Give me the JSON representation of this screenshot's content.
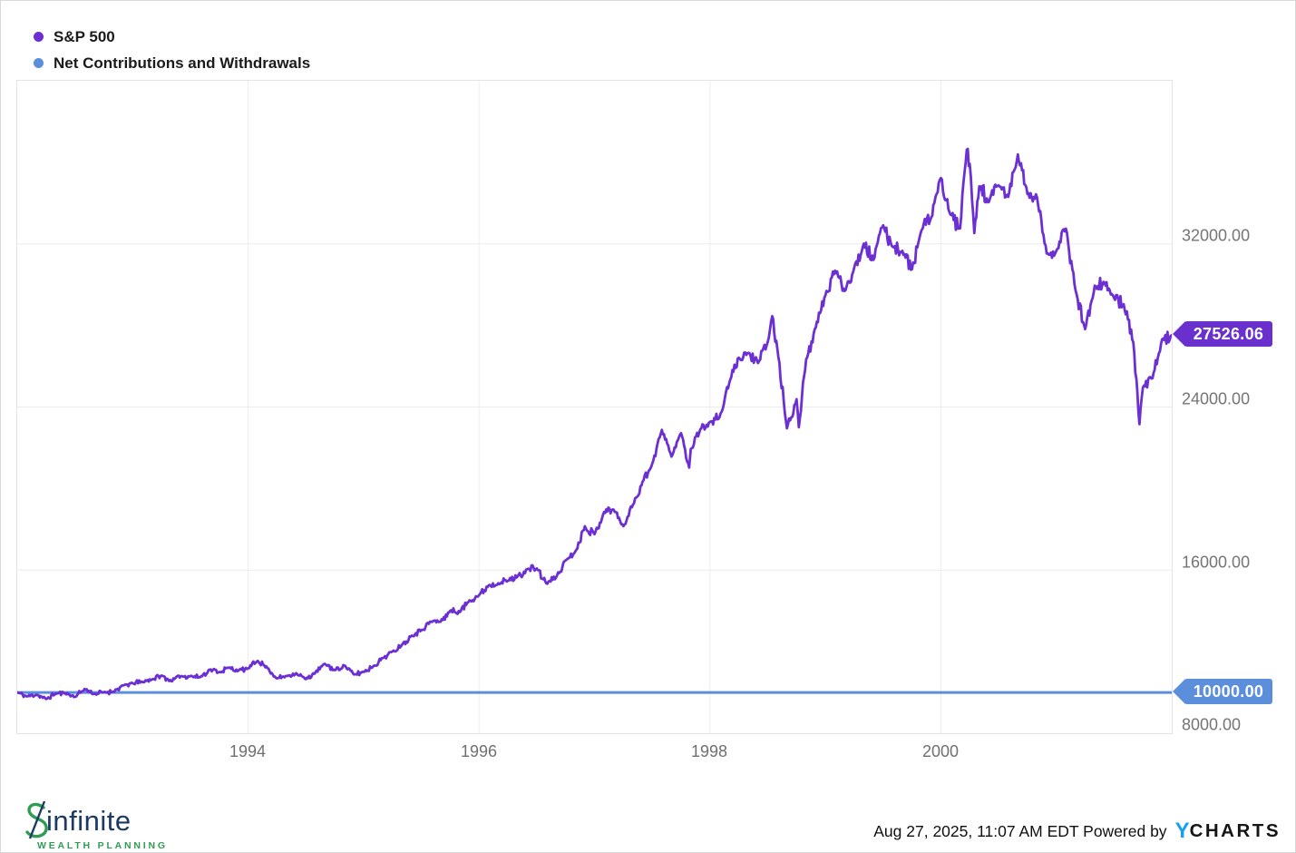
{
  "legend": {
    "items": [
      {
        "label": "S&P 500",
        "color": "#6C30D2"
      },
      {
        "label": "Net Contributions and Withdrawals",
        "color": "#5B8EDB"
      }
    ]
  },
  "axes": {
    "y_labels": [
      "32000.00",
      "24000.00",
      "16000.00",
      "8000.00"
    ],
    "x_labels": [
      "1994",
      "1996",
      "1998",
      "2000"
    ]
  },
  "tags": {
    "sp500": {
      "value": "27526.06",
      "color": "#6930CE"
    },
    "net": {
      "value": "10000.00",
      "color": "#5B8EDB"
    }
  },
  "footer": {
    "logo_word": "infinite",
    "logo_sub": "WEALTH PLANNING",
    "timestamp": "Aug 27, 2025, 11:07 AM EDT Powered by",
    "ycharts_y": "Y",
    "ycharts_rest": "CHARTS"
  },
  "colors": {
    "sp500_line": "#6C30D2",
    "net_line": "#5B8EDB",
    "grid": "#ececec",
    "plot_border": "#e3e3e3",
    "axis_text": "#757575",
    "logo_navy": "#1d3a63",
    "logo_green": "#2f9c53",
    "ycharts_blue": "#18a0f0"
  },
  "chart_data": {
    "type": "line",
    "title": "Growth of $10,000: S&P 500 vs Net Contributions and Withdrawals (Jan 1992 - Dec 2001)",
    "x_range": [
      1992,
      2002
    ],
    "y_range": [
      8000,
      40000
    ],
    "x_ticks": [
      1994,
      1996,
      1998,
      2000
    ],
    "y_ticks": [
      8000,
      16000,
      24000,
      32000
    ],
    "grid": true,
    "legend_position": "top-left",
    "series": [
      {
        "name": "S&P 500",
        "color": "#6C30D2",
        "end_value": 27526.06,
        "cadence": "monthly",
        "t0": 1992.0,
        "dt_years": 0.0833333,
        "values": [
          10000,
          9801,
          9895,
          9679,
          9949,
          9958,
          9786,
          10171,
          9927,
          10017,
          10038,
          10342,
          10447,
          10520,
          10631,
          10829,
          10554,
          10794,
          10802,
          10744,
          11114,
          11003,
          11217,
          11072,
          11184,
          11547,
          11200,
          10688,
          10811,
          10945,
          10652,
          10987,
          11400,
          11093,
          11325,
          10878,
          11012,
          11279,
          11686,
          12005,
          12341,
          12789,
          13061,
          13476,
          13472,
          14012,
          13942,
          14514,
          14768,
          15249,
          15355,
          15477,
          15684,
          16043,
          16079,
          15344,
          15632,
          16479,
          16910,
          18151,
          17760,
          18849,
          18961,
          18153,
          19213,
          20339,
          21222,
          22880,
          21566,
          22712,
          21929,
          22907,
          23267,
          23503,
          25159,
          26416,
          26655,
          26154,
          27185,
          26869,
          22952,
          24384,
          26342,
          27899,
          29472,
          30681,
          29690,
          30842,
          32012,
          31213,
          32912,
          31857,
          31658,
          30754,
          32678,
          33301,
          35227,
          33434,
          32761,
          35930,
          34823,
          34060,
          34875,
          34306,
          36388,
          34442,
          34272,
          31527,
          31655,
          32751,
          29729,
          27820,
          29957,
          30110,
          29356,
          29041,
          27179,
          24958,
          25410,
          27320,
          27526.06
        ],
        "intraperiod_extremes": [
          {
            "t": 1997.82,
            "v": 21027
          },
          {
            "t": 1998.54,
            "v": 28455
          },
          {
            "t": 1998.77,
            "v": 23006
          },
          {
            "t": 2000.225,
            "v": 36622
          },
          {
            "t": 2000.29,
            "v": 32526
          },
          {
            "t": 2001.72,
            "v": 23156
          }
        ]
      },
      {
        "name": "Net Contributions and Withdrawals",
        "color": "#5B8EDB",
        "constant": 10000,
        "end_value": 10000
      }
    ]
  }
}
